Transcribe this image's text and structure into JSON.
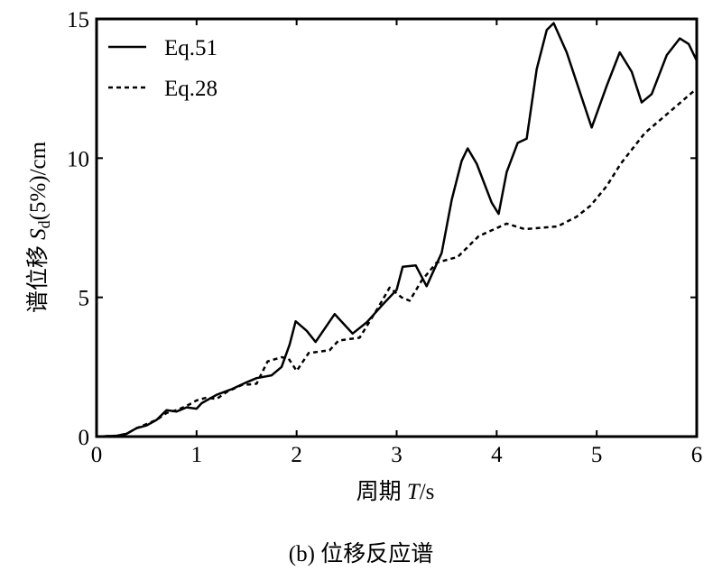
{
  "chart_data": {
    "type": "line",
    "xlabel": {
      "prefix": "周期 ",
      "var": "T",
      "suffix": "/s"
    },
    "ylabel": {
      "prefix": "谱位移 ",
      "var": "S",
      "sub": "d",
      "suffix": "(5%)/cm"
    },
    "caption": "(b) 位移反应谱",
    "xlim": [
      0,
      6
    ],
    "ylim": [
      0,
      15
    ],
    "xticks": [
      "0",
      "1",
      "2",
      "3",
      "4",
      "5",
      "6"
    ],
    "yticks": [
      "0",
      "5",
      "10",
      "15"
    ],
    "grid": false,
    "legend_position": "top-left",
    "series": [
      {
        "name": "Eq.51",
        "style": "solid",
        "color": "#000000",
        "points": [
          [
            0,
            0
          ],
          [
            0.2,
            0.03
          ],
          [
            0.3,
            0.1
          ],
          [
            0.4,
            0.3
          ],
          [
            0.5,
            0.4
          ],
          [
            0.6,
            0.6
          ],
          [
            0.7,
            0.95
          ],
          [
            0.8,
            0.9
          ],
          [
            0.9,
            1.05
          ],
          [
            1.0,
            1.0
          ],
          [
            1.05,
            1.2
          ],
          [
            1.2,
            1.5
          ],
          [
            1.35,
            1.7
          ],
          [
            1.5,
            1.95
          ],
          [
            1.6,
            2.1
          ],
          [
            1.75,
            2.2
          ],
          [
            1.85,
            2.5
          ],
          [
            1.93,
            3.3
          ],
          [
            1.99,
            4.14
          ],
          [
            2.1,
            3.8
          ],
          [
            2.19,
            3.4
          ],
          [
            2.38,
            4.4
          ],
          [
            2.56,
            3.7
          ],
          [
            2.7,
            4.1
          ],
          [
            2.85,
            4.7
          ],
          [
            3.0,
            5.27
          ],
          [
            3.06,
            6.1
          ],
          [
            3.19,
            6.15
          ],
          [
            3.3,
            5.4
          ],
          [
            3.45,
            6.6
          ],
          [
            3.55,
            8.5
          ],
          [
            3.65,
            9.9
          ],
          [
            3.71,
            10.35
          ],
          [
            3.8,
            9.8
          ],
          [
            3.95,
            8.4
          ],
          [
            4.02,
            8.0
          ],
          [
            4.1,
            9.5
          ],
          [
            4.21,
            10.55
          ],
          [
            4.3,
            10.7
          ],
          [
            4.4,
            13.2
          ],
          [
            4.5,
            14.6
          ],
          [
            4.57,
            14.85
          ],
          [
            4.7,
            13.8
          ],
          [
            4.95,
            11.1
          ],
          [
            5.1,
            12.6
          ],
          [
            5.23,
            13.8
          ],
          [
            5.35,
            13.1
          ],
          [
            5.45,
            12.0
          ],
          [
            5.55,
            12.3
          ],
          [
            5.7,
            13.7
          ],
          [
            5.83,
            14.3
          ],
          [
            5.92,
            14.1
          ],
          [
            6.0,
            13.5
          ]
        ]
      },
      {
        "name": "Eq.28",
        "style": "dashed",
        "color": "#000000",
        "points": [
          [
            0,
            0
          ],
          [
            0.2,
            0.03
          ],
          [
            0.3,
            0.1
          ],
          [
            0.4,
            0.3
          ],
          [
            0.5,
            0.45
          ],
          [
            0.6,
            0.6
          ],
          [
            0.7,
            0.85
          ],
          [
            0.8,
            0.95
          ],
          [
            0.9,
            1.1
          ],
          [
            1.0,
            1.3
          ],
          [
            1.1,
            1.4
          ],
          [
            1.2,
            1.35
          ],
          [
            1.3,
            1.6
          ],
          [
            1.45,
            1.85
          ],
          [
            1.6,
            1.9
          ],
          [
            1.71,
            2.7
          ],
          [
            1.85,
            2.85
          ],
          [
            1.92,
            2.8
          ],
          [
            2.0,
            2.36
          ],
          [
            2.12,
            3.0
          ],
          [
            2.33,
            3.1
          ],
          [
            2.42,
            3.45
          ],
          [
            2.63,
            3.55
          ],
          [
            2.81,
            4.6
          ],
          [
            2.93,
            5.35
          ],
          [
            3.05,
            5.0
          ],
          [
            3.13,
            4.88
          ],
          [
            3.25,
            5.6
          ],
          [
            3.4,
            6.25
          ],
          [
            3.61,
            6.45
          ],
          [
            3.82,
            7.2
          ],
          [
            4.1,
            7.65
          ],
          [
            4.28,
            7.45
          ],
          [
            4.61,
            7.55
          ],
          [
            4.8,
            7.9
          ],
          [
            4.94,
            8.3
          ],
          [
            5.1,
            9.0
          ],
          [
            5.24,
            9.8
          ],
          [
            5.48,
            10.9
          ],
          [
            5.79,
            11.85
          ],
          [
            6.0,
            12.5
          ]
        ]
      }
    ]
  }
}
